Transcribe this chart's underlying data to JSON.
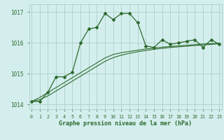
{
  "title": "Graphe pression niveau de la mer (hPa)",
  "background_color": "#d4eeee",
  "grid_color": "#b0d4cc",
  "line_color": "#2d6b2d",
  "x_values": [
    0,
    1,
    2,
    3,
    4,
    5,
    6,
    7,
    8,
    9,
    10,
    11,
    12,
    13,
    14,
    15,
    16,
    17,
    18,
    19,
    20,
    21,
    22,
    23
  ],
  "y_main": [
    1014.1,
    1014.1,
    1014.4,
    1014.9,
    1014.9,
    1015.05,
    1016.0,
    1016.45,
    1016.5,
    1016.95,
    1016.75,
    1016.95,
    1016.95,
    1016.65,
    1015.9,
    1015.85,
    1016.1,
    1015.95,
    1016.0,
    1016.05,
    1016.1,
    1015.85,
    1016.1,
    1015.95
  ],
  "y_trend1": [
    1014.1,
    1014.16,
    1014.28,
    1014.44,
    1014.6,
    1014.76,
    1014.92,
    1015.08,
    1015.24,
    1015.4,
    1015.52,
    1015.6,
    1015.66,
    1015.71,
    1015.75,
    1015.79,
    1015.82,
    1015.85,
    1015.87,
    1015.89,
    1015.91,
    1015.93,
    1015.95,
    1015.97
  ],
  "y_trend2": [
    1014.1,
    1014.23,
    1014.39,
    1014.55,
    1014.71,
    1014.87,
    1015.03,
    1015.19,
    1015.35,
    1015.51,
    1015.62,
    1015.68,
    1015.72,
    1015.76,
    1015.8,
    1015.83,
    1015.86,
    1015.88,
    1015.9,
    1015.92,
    1015.94,
    1015.96,
    1015.97,
    1015.99
  ],
  "ylim": [
    1013.85,
    1017.25
  ],
  "yticks": [
    1014,
    1015,
    1016,
    1017
  ],
  "xlim": [
    -0.3,
    23.3
  ],
  "xticks": [
    0,
    1,
    2,
    3,
    4,
    5,
    6,
    7,
    8,
    9,
    10,
    11,
    12,
    13,
    14,
    15,
    16,
    17,
    18,
    19,
    20,
    21,
    22,
    23
  ]
}
